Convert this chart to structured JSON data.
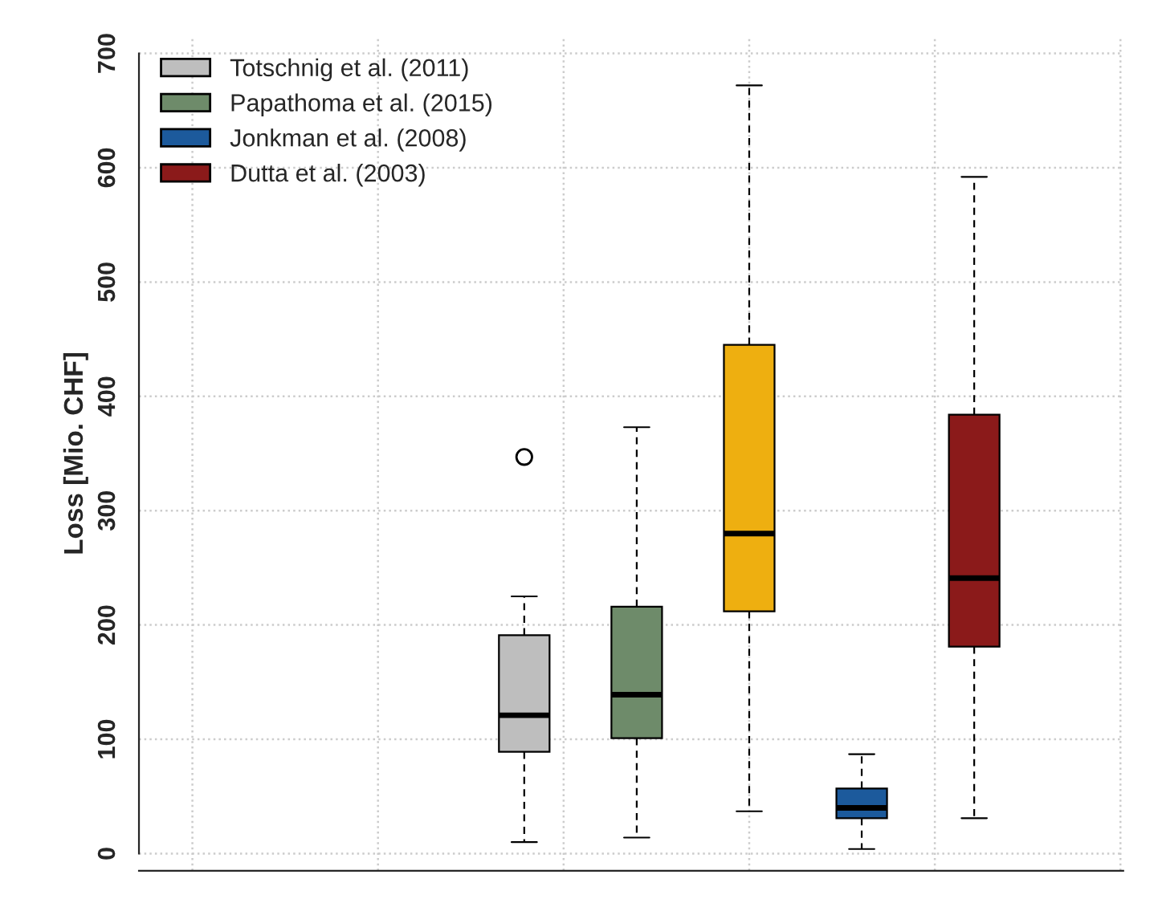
{
  "chart_data": {
    "type": "box",
    "ylabel": "Loss [Mio. CHF]",
    "categories": [
      null
    ],
    "ylim": [
      -15,
      715
    ],
    "yticks": [
      0,
      100,
      200,
      300,
      400,
      500,
      600,
      700
    ],
    "tick_labels": "y",
    "grid": true,
    "legend": "top left",
    "series": [
      {
        "name": "Totschnig et al. (2011)",
        "color": "#bebebe",
        "boxes": [
          {
            "low": 10,
            "q1": 89,
            "median": 121,
            "q3": 191,
            "high": 225,
            "outliers": [
              347
            ]
          }
        ]
      },
      {
        "name": "Papathoma et al. (2015)",
        "color": "#6e8b6a",
        "boxes": [
          {
            "low": 14,
            "q1": 101,
            "median": 139,
            "q3": 216,
            "high": 373
          }
        ]
      },
      {
        "color": "#eeaf10",
        "boxes": [
          {
            "low": 37,
            "q1": 212,
            "median": 280,
            "q3": 445,
            "high": 672
          }
        ]
      },
      {
        "name": "Jonkman et al. (2008)",
        "color": "#1c5a9c",
        "boxes": [
          {
            "low": 4,
            "q1": 31,
            "median": 40,
            "q3": 57,
            "high": 87
          }
        ]
      },
      {
        "name": "Dutta et al. (2003)",
        "color": "#8b1a1a",
        "boxes": [
          {
            "low": 31,
            "q1": 181,
            "median": 241,
            "q3": 384,
            "high": 592
          }
        ]
      }
    ]
  }
}
